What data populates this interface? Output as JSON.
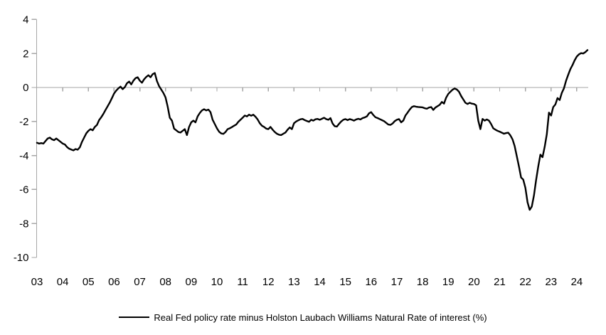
{
  "chart_data": {
    "type": "line",
    "title": "",
    "legend": "Real Fed policy rate minus Holston Laubach Williams Natural Rate of interest (%)",
    "legend_position": "bottom",
    "grid": false,
    "zero_line": true,
    "axis_color": "#A6A6A6",
    "line_color": "#000000",
    "text_color": "#000000",
    "y_axis": {
      "ticks": [
        4,
        2,
        0,
        -2,
        -4,
        -6,
        -8,
        -10
      ],
      "labels": [
        "4",
        "2",
        "0",
        "-2",
        "-4",
        "-6",
        "-8",
        "-10"
      ],
      "ylim": [
        -10,
        4
      ]
    },
    "x_axis": {
      "labels": [
        "03",
        "04",
        "05",
        "06",
        "07",
        "08",
        "09",
        "10",
        "11",
        "12",
        "13",
        "14",
        "15",
        "16",
        "17",
        "18",
        "19",
        "20",
        "21",
        "22",
        "23",
        "24"
      ],
      "start_year": 2003,
      "end": "mid-2024",
      "step_months": 1
    },
    "series": [
      {
        "name": "Real Fed policy rate minus Holston Laubach Williams Natural Rate of interest (%)",
        "color": "#000000",
        "x_start_year": 2003,
        "x_step_months": 1,
        "values": [
          -3.25,
          -3.3,
          -3.27,
          -3.3,
          -3.15,
          -3.0,
          -2.95,
          -3.05,
          -3.1,
          -3.0,
          -3.1,
          -3.2,
          -3.3,
          -3.35,
          -3.5,
          -3.6,
          -3.65,
          -3.7,
          -3.62,
          -3.66,
          -3.52,
          -3.2,
          -2.95,
          -2.7,
          -2.55,
          -2.45,
          -2.52,
          -2.32,
          -2.2,
          -1.92,
          -1.75,
          -1.55,
          -1.32,
          -1.1,
          -0.88,
          -0.62,
          -0.35,
          -0.18,
          -0.05,
          0.05,
          -0.1,
          0.02,
          0.25,
          0.35,
          0.18,
          0.4,
          0.55,
          0.6,
          0.4,
          0.28,
          0.48,
          0.62,
          0.72,
          0.6,
          0.78,
          0.85,
          0.38,
          0.08,
          -0.12,
          -0.32,
          -0.58,
          -1.12,
          -1.78,
          -1.95,
          -2.42,
          -2.52,
          -2.62,
          -2.65,
          -2.55,
          -2.45,
          -2.8,
          -2.32,
          -2.05,
          -1.95,
          -2.05,
          -1.7,
          -1.5,
          -1.35,
          -1.28,
          -1.35,
          -1.3,
          -1.45,
          -1.9,
          -2.15,
          -2.4,
          -2.6,
          -2.7,
          -2.73,
          -2.62,
          -2.45,
          -2.4,
          -2.33,
          -2.25,
          -2.18,
          -2.02,
          -1.9,
          -1.78,
          -1.65,
          -1.7,
          -1.6,
          -1.66,
          -1.6,
          -1.72,
          -1.88,
          -2.1,
          -2.25,
          -2.32,
          -2.42,
          -2.45,
          -2.32,
          -2.48,
          -2.62,
          -2.72,
          -2.78,
          -2.8,
          -2.72,
          -2.65,
          -2.48,
          -2.35,
          -2.45,
          -2.1,
          -2.0,
          -1.93,
          -1.87,
          -1.85,
          -1.92,
          -1.97,
          -2.02,
          -1.9,
          -1.95,
          -1.87,
          -1.85,
          -1.9,
          -1.84,
          -1.78,
          -1.86,
          -1.9,
          -1.8,
          -2.12,
          -2.28,
          -2.3,
          -2.14,
          -2.0,
          -1.9,
          -1.86,
          -1.92,
          -1.86,
          -1.9,
          -1.95,
          -1.88,
          -1.84,
          -1.88,
          -1.8,
          -1.76,
          -1.7,
          -1.52,
          -1.45,
          -1.62,
          -1.75,
          -1.8,
          -1.86,
          -1.92,
          -1.98,
          -2.08,
          -2.18,
          -2.2,
          -2.12,
          -1.98,
          -1.9,
          -1.86,
          -2.05,
          -1.95,
          -1.65,
          -1.48,
          -1.3,
          -1.15,
          -1.1,
          -1.13,
          -1.15,
          -1.16,
          -1.17,
          -1.22,
          -1.25,
          -1.18,
          -1.15,
          -1.32,
          -1.18,
          -1.1,
          -1.02,
          -0.85,
          -0.95,
          -0.6,
          -0.38,
          -0.25,
          -0.13,
          -0.06,
          -0.12,
          -0.25,
          -0.5,
          -0.7,
          -0.9,
          -0.97,
          -0.9,
          -0.95,
          -0.97,
          -1.05,
          -1.95,
          -2.45,
          -1.85,
          -1.95,
          -1.88,
          -1.95,
          -2.15,
          -2.4,
          -2.48,
          -2.55,
          -2.6,
          -2.66,
          -2.72,
          -2.68,
          -2.66,
          -2.82,
          -3.05,
          -3.45,
          -4.05,
          -4.65,
          -5.3,
          -5.42,
          -5.9,
          -6.75,
          -7.2,
          -7.0,
          -6.35,
          -5.45,
          -4.65,
          -3.95,
          -4.1,
          -3.5,
          -2.75,
          -1.48,
          -1.65,
          -1.15,
          -1.0,
          -0.62,
          -0.74,
          -0.32,
          -0.05,
          0.4,
          0.75,
          1.08,
          1.32,
          1.6,
          1.82,
          1.95,
          2.02,
          2.0,
          2.08,
          2.2
        ]
      }
    ]
  }
}
